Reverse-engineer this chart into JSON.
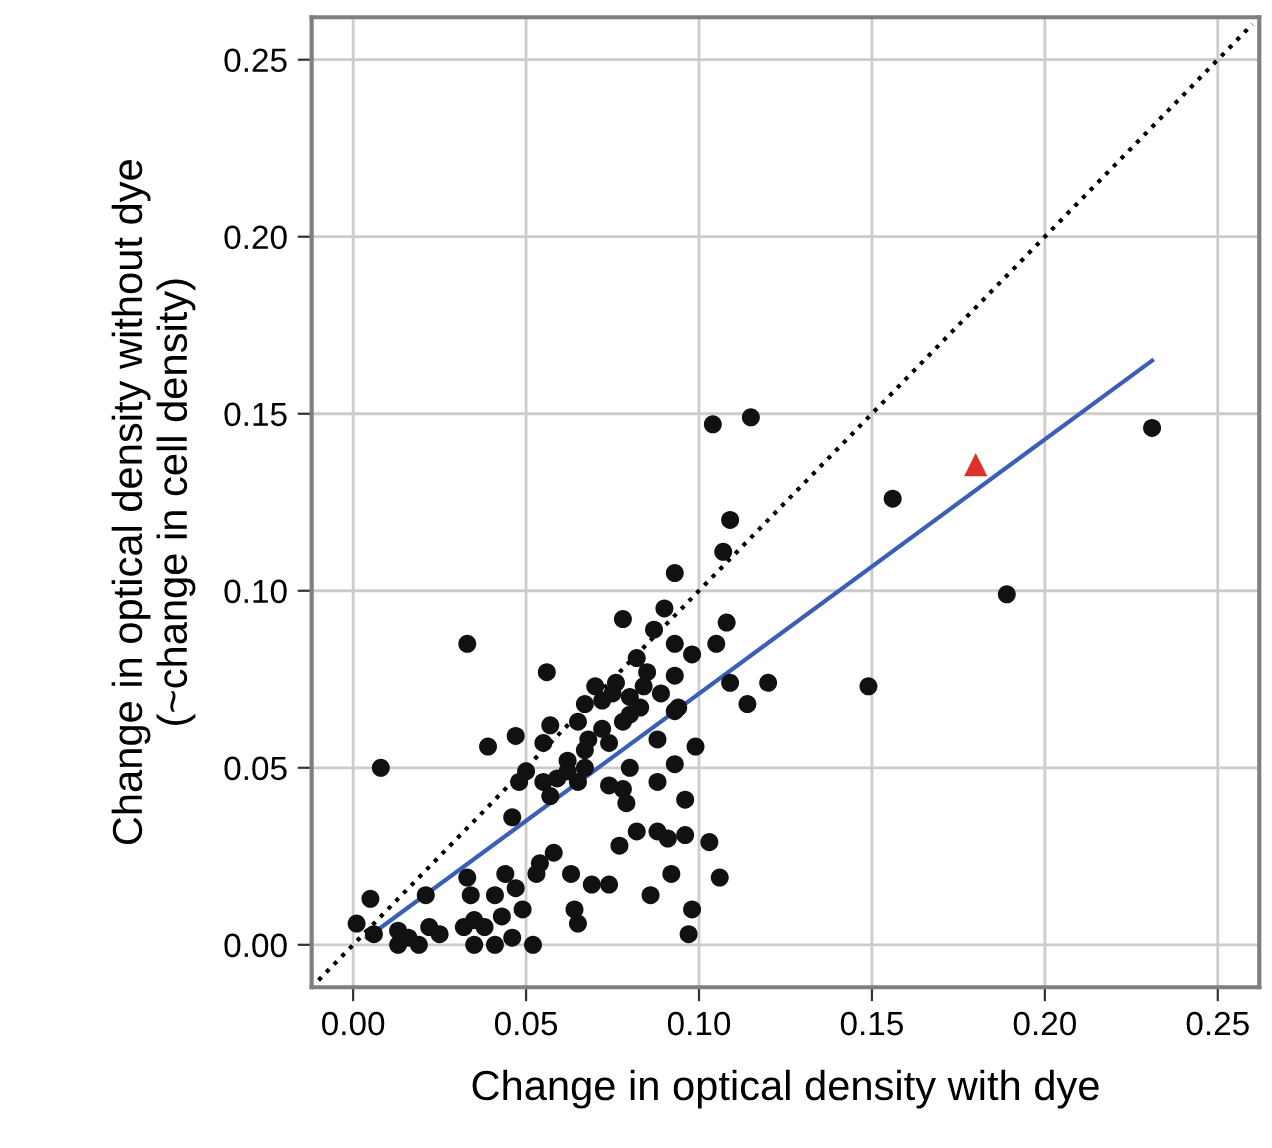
{
  "chart_data": {
    "type": "scatter",
    "xlabel": "Change in optical density with dye",
    "ylabel": "Change in optical density without dye\n(~change in cell density)",
    "xlim": [
      -0.012,
      0.262
    ],
    "ylim": [
      -0.012,
      0.262
    ],
    "xticks": [
      {
        "value": 0,
        "label": "0.00"
      },
      {
        "value": 0.05,
        "label": "0.05"
      },
      {
        "value": 0.1,
        "label": "0.10"
      },
      {
        "value": 0.15,
        "label": "0.15"
      },
      {
        "value": 0.2,
        "label": "0.20"
      },
      {
        "value": 0.25,
        "label": "0.25"
      }
    ],
    "yticks": [
      {
        "value": 0,
        "label": "0.00"
      },
      {
        "value": 0.05,
        "label": "0.05"
      },
      {
        "value": 0.1,
        "label": "0.10"
      },
      {
        "value": 0.15,
        "label": "0.15"
      },
      {
        "value": 0.2,
        "label": "0.20"
      },
      {
        "value": 0.25,
        "label": "0.25"
      }
    ],
    "grid": true,
    "legend": false,
    "series": [
      {
        "type": "line",
        "line_style": "dotted",
        "marker": "none",
        "color": "#000000",
        "x": [
          -0.01,
          0.26
        ],
        "values": [
          -0.01,
          0.26
        ]
      },
      {
        "marker": "circle",
        "color": "#111111",
        "x": [
          0.104,
          0.115,
          0.231,
          0.156,
          0.189,
          0.149,
          0.109,
          0.107,
          0.093,
          0.108,
          0.078,
          0.09,
          0.087,
          0.105,
          0.033,
          0.093,
          0.098,
          0.082,
          0.056,
          0.085,
          0.093,
          0.109,
          0.12,
          0.114,
          0.089,
          0.07,
          0.076,
          0.08,
          0.072,
          0.067,
          0.083,
          0.094,
          0.065,
          0.093,
          0.057,
          0.047,
          0.072,
          0.078,
          0.055,
          0.039,
          0.088,
          0.099,
          0.067,
          0.074,
          0.008,
          0.067,
          0.062,
          0.05,
          0.08,
          0.093,
          0.048,
          0.055,
          0.059,
          0.065,
          0.074,
          0.088,
          0.078,
          0.057,
          0.079,
          0.096,
          0.046,
          0.077,
          0.082,
          0.088,
          0.091,
          0.096,
          0.103,
          0.058,
          0.054,
          0.053,
          0.063,
          0.092,
          0.106,
          0.069,
          0.074,
          0.086,
          0.033,
          0.044,
          0.034,
          0.041,
          0.047,
          0.049,
          0.064,
          0.098,
          0.065,
          0.097,
          0.043,
          0.035,
          0.038,
          0.032,
          0.046,
          0.035,
          0.041,
          0.052,
          0.005,
          0.001,
          0.006,
          0.013,
          0.021,
          0.022,
          0.025,
          0.013,
          0.019,
          0.016,
          0.075,
          0.084,
          0.08,
          0.068,
          0.062
        ],
        "values": [
          0.147,
          0.149,
          0.146,
          0.126,
          0.099,
          0.073,
          0.12,
          0.111,
          0.105,
          0.091,
          0.092,
          0.095,
          0.089,
          0.085,
          0.085,
          0.085,
          0.082,
          0.081,
          0.077,
          0.077,
          0.076,
          0.074,
          0.074,
          0.068,
          0.071,
          0.073,
          0.074,
          0.07,
          0.069,
          0.068,
          0.067,
          0.067,
          0.063,
          0.066,
          0.062,
          0.059,
          0.061,
          0.063,
          0.057,
          0.056,
          0.058,
          0.056,
          0.055,
          0.057,
          0.05,
          0.05,
          0.049,
          0.049,
          0.05,
          0.051,
          0.046,
          0.046,
          0.047,
          0.046,
          0.045,
          0.046,
          0.044,
          0.042,
          0.04,
          0.041,
          0.036,
          0.028,
          0.032,
          0.032,
          0.03,
          0.031,
          0.029,
          0.026,
          0.023,
          0.02,
          0.02,
          0.02,
          0.019,
          0.017,
          0.017,
          0.014,
          0.019,
          0.02,
          0.014,
          0.014,
          0.016,
          0.01,
          0.01,
          0.01,
          0.006,
          0.003,
          0.008,
          0.007,
          0.005,
          0.005,
          0.002,
          0.0,
          0.0,
          0.0,
          0.013,
          0.006,
          0.003,
          0.004,
          0.014,
          0.005,
          0.003,
          0.0,
          0.0,
          0.002,
          0.071,
          0.073,
          0.065,
          0.058,
          0.052
        ]
      },
      {
        "marker": "triangle",
        "color": "#e0302a",
        "x": [
          0.18
        ],
        "values": [
          0.1356
        ]
      },
      {
        "type": "line",
        "line_style": "solid",
        "marker": "none",
        "color": "#3a5fb5",
        "x": [
          0.004,
          0.231
        ],
        "values": [
          0.002,
          0.165
        ]
      }
    ]
  }
}
